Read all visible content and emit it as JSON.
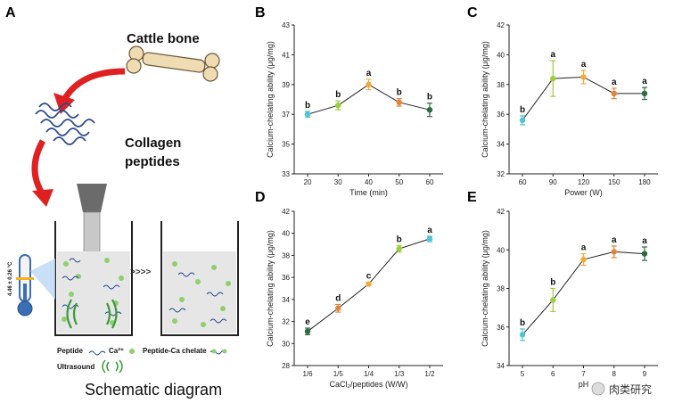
{
  "panel_labels": {
    "a": "A",
    "b": "B",
    "c": "C",
    "d": "D",
    "e": "E"
  },
  "schematic": {
    "cattle_bone": "Cattle bone",
    "collagen_line1": "Collagen",
    "collagen_line2": "peptides",
    "legend_peptide": "Peptide",
    "legend_ca": "Ca²⁺",
    "legend_chelate": "Peptide-Ca chelate",
    "legend_ultrasound": "Ultrasound",
    "thermo_label": "4.46 ± 0.26 °C",
    "arrow_text": ">>>>",
    "caption": "Schematic diagram"
  },
  "watermark": "肉类研究",
  "chart_data": [
    {
      "id": "B",
      "type": "line",
      "categories": [
        "20",
        "30",
        "40",
        "50",
        "60"
      ],
      "values": [
        37.0,
        37.6,
        39.0,
        37.8,
        37.3
      ],
      "errors": [
        0.2,
        0.3,
        0.35,
        0.25,
        0.45
      ],
      "letters": [
        "b",
        "b",
        "a",
        "b",
        "b"
      ],
      "ylim": [
        33,
        43
      ],
      "yticks": [
        "33",
        "35",
        "37",
        "39",
        "41",
        "43"
      ],
      "xlabel": "Time (min)",
      "ylabel": "Calcium-chelating ability (μg/mg)",
      "point_colors": [
        "#4fc4d4",
        "#9ccf3c",
        "#f2a93b",
        "#e0843a",
        "#2e6b44"
      ]
    },
    {
      "id": "C",
      "type": "line",
      "categories": [
        "60",
        "90",
        "120",
        "150",
        "180"
      ],
      "values": [
        35.6,
        38.4,
        38.5,
        37.4,
        37.4
      ],
      "errors": [
        0.3,
        1.2,
        0.45,
        0.35,
        0.4
      ],
      "letters": [
        "b",
        "a",
        "a",
        "a",
        "a"
      ],
      "ylim": [
        32,
        42
      ],
      "yticks": [
        "32",
        "34",
        "36",
        "38",
        "40",
        "42"
      ],
      "xlabel": "Power (W)",
      "ylabel": "Calcium-chelating ability (μg/mg)",
      "point_colors": [
        "#4fc4d4",
        "#9ccf3c",
        "#f2a93b",
        "#e0843a",
        "#2e6b44"
      ]
    },
    {
      "id": "D",
      "type": "line",
      "categories": [
        "1/6",
        "1/5",
        "1/4",
        "1/3",
        "1/2"
      ],
      "values": [
        31.1,
        33.2,
        35.4,
        38.6,
        39.5
      ],
      "errors": [
        0.3,
        0.35,
        0.15,
        0.3,
        0.25
      ],
      "letters": [
        "e",
        "d",
        "c",
        "b",
        "a"
      ],
      "ylim": [
        28,
        42
      ],
      "yticks": [
        "28",
        "30",
        "32",
        "34",
        "36",
        "38",
        "40",
        "42"
      ],
      "xlabel": "CaCl₂/peptides (W/W)",
      "ylabel": "Calcium-chelating ability (μg/mg)",
      "point_colors": [
        "#2e6b44",
        "#e0843a",
        "#f2a93b",
        "#9ccf3c",
        "#4fc4d4"
      ]
    },
    {
      "id": "E",
      "type": "line",
      "categories": [
        "5",
        "6",
        "7",
        "8",
        "9"
      ],
      "values": [
        35.6,
        37.4,
        39.5,
        39.9,
        39.8
      ],
      "errors": [
        0.3,
        0.6,
        0.3,
        0.3,
        0.35
      ],
      "letters": [
        "b",
        "b",
        "a",
        "a",
        "a"
      ],
      "ylim": [
        34,
        42
      ],
      "yticks": [
        "34",
        "36",
        "38",
        "40",
        "42"
      ],
      "xlabel": "pH",
      "ylabel": "Calcium-chelating ability (μg/mg)",
      "point_colors": [
        "#4fc4d4",
        "#9ccf3c",
        "#f2a93b",
        "#e0843a",
        "#2e6b44"
      ]
    }
  ]
}
